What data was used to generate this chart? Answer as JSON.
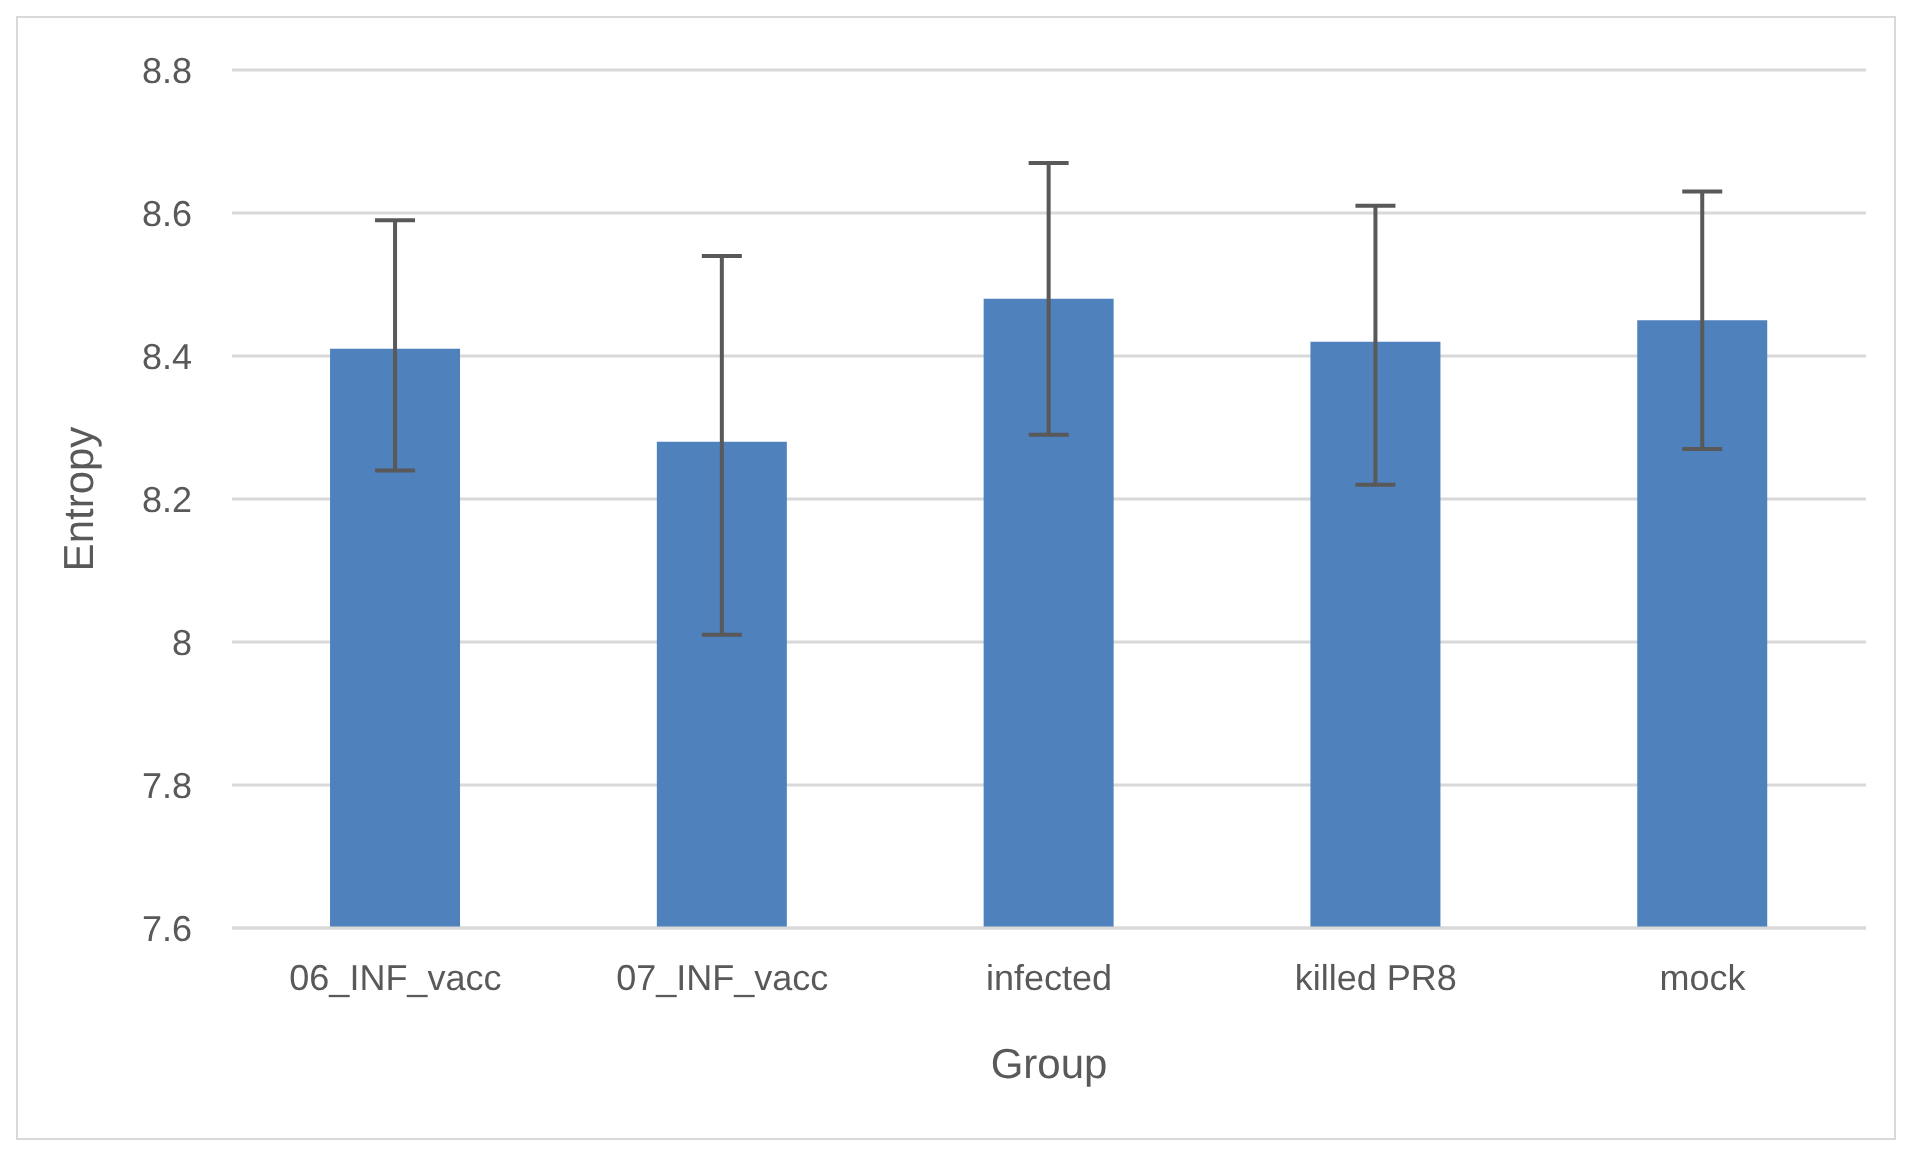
{
  "chart_data": {
    "type": "bar",
    "xlabel": "Group",
    "ylabel": "Entropy",
    "categories": [
      "06_INF_vacc",
      "07_INF_vacc",
      "infected",
      "killed PR8",
      "mock"
    ],
    "values": [
      8.41,
      8.28,
      8.48,
      8.42,
      8.45
    ],
    "errors": [
      [
        8.24,
        8.59
      ],
      [
        8.01,
        8.54
      ],
      [
        8.29,
        8.67
      ],
      [
        8.22,
        8.61
      ],
      [
        8.27,
        8.63
      ]
    ],
    "color": "#4f81bd",
    "ylim": [
      7.6,
      8.8
    ],
    "yticks": [
      7.6,
      7.8,
      8,
      8.2,
      8.4,
      8.6,
      8.8
    ],
    "grid": "y",
    "legend": false
  }
}
